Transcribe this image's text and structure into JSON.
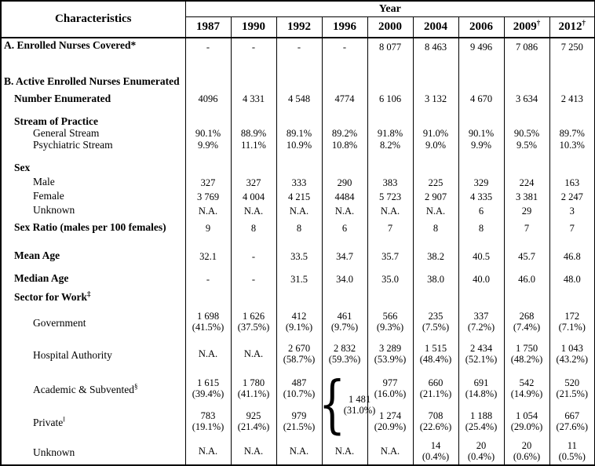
{
  "table": {
    "characteristics_header": "Characteristics",
    "year_header": "Year",
    "years": [
      {
        "label": "1987",
        "sup": ""
      },
      {
        "label": "1990",
        "sup": ""
      },
      {
        "label": "1992",
        "sup": ""
      },
      {
        "label": "1996",
        "sup": ""
      },
      {
        "label": "2000",
        "sup": ""
      },
      {
        "label": "2004",
        "sup": ""
      },
      {
        "label": "2006",
        "sup": ""
      },
      {
        "label": "2009",
        "sup": "†"
      },
      {
        "label": "2012",
        "sup": "†"
      }
    ],
    "merged_1996": {
      "brace": "{",
      "value": "1 481\n(31.0%)"
    },
    "rows": [
      {
        "name": "enrolled-covered",
        "label": "A. Enrolled Nurses Covered*",
        "sup": "",
        "values": [
          "-",
          "-",
          "-",
          "-",
          "8 077",
          "8 463",
          "9 496",
          "7 086",
          "7 250"
        ]
      },
      {
        "name": "active-enumerated-heading",
        "label": "B. Active Enrolled Nurses Enumerated",
        "sup": "",
        "values": null
      },
      {
        "name": "number-enumerated",
        "label": "Number Enumerated",
        "sup": "",
        "values": [
          "4096",
          "4 331",
          "4 548",
          "4774",
          "6 106",
          "3 132",
          "4 670",
          "3 634",
          "2 413"
        ]
      },
      {
        "name": "stream-heading",
        "label": "Stream of Practice",
        "sup": "",
        "values": null
      },
      {
        "name": "general-stream",
        "label": "General Stream",
        "sup": "",
        "values": [
          "90.1%",
          "88.9%",
          "89.1%",
          "89.2%",
          "91.8%",
          "91.0%",
          "90.1%",
          "90.5%",
          "89.7%"
        ]
      },
      {
        "name": "psychiatric-stream",
        "label": "Psychiatric Stream",
        "sup": "",
        "values": [
          "9.9%",
          "11.1%",
          "10.9%",
          "10.8%",
          "8.2%",
          "9.0%",
          "9.9%",
          "9.5%",
          "10.3%"
        ]
      },
      {
        "name": "sex-heading",
        "label": "Sex",
        "sup": "",
        "values": null
      },
      {
        "name": "sex-male",
        "label": "Male",
        "sup": "",
        "values": [
          "327",
          "327",
          "333",
          "290",
          "383",
          "225",
          "329",
          "224",
          "163"
        ]
      },
      {
        "name": "sex-female",
        "label": "Female",
        "sup": "",
        "values": [
          "3 769",
          "4 004",
          "4 215",
          "4484",
          "5 723",
          "2 907",
          "4 335",
          "3 381",
          "2 247"
        ]
      },
      {
        "name": "sex-unknown",
        "label": "Unknown",
        "sup": "",
        "values": [
          "N.A.",
          "N.A.",
          "N.A.",
          "N.A.",
          "N.A.",
          "N.A.",
          "6",
          "29",
          "3"
        ]
      },
      {
        "name": "sex-ratio",
        "label": "Sex Ratio (males per 100 females)",
        "sup": "",
        "values": [
          "9",
          "8",
          "8",
          "6",
          "7",
          "8",
          "8",
          "7",
          "7"
        ]
      },
      {
        "name": "mean-age",
        "label": "Mean Age",
        "sup": "",
        "values": [
          "32.1",
          "-",
          "33.5",
          "34.7",
          "35.7",
          "38.2",
          "40.5",
          "45.7",
          "46.8"
        ]
      },
      {
        "name": "median-age",
        "label": "Median Age",
        "sup": "",
        "values": [
          "-",
          "-",
          "31.5",
          "34.0",
          "35.0",
          "38.0",
          "40.0",
          "46.0",
          "48.0"
        ]
      },
      {
        "name": "sector-heading",
        "label": "Sector for Work",
        "sup": "‡",
        "values": null
      },
      {
        "name": "sector-government",
        "label": "Government",
        "sup": "",
        "values": [
          "1 698\n(41.5%)",
          "1 626\n(37.5%)",
          "412\n(9.1%)",
          "461\n(9.7%)",
          "566\n(9.3%)",
          "235\n(7.5%)",
          "337\n(7.2%)",
          "268\n(7.4%)",
          "172\n(7.1%)"
        ]
      },
      {
        "name": "sector-hospital-authority",
        "label": "Hospital Authority",
        "sup": "",
        "values": [
          "N.A.",
          "N.A.",
          "2 670\n(58.7%)",
          "2 832\n(59.3%)",
          "3 289\n(53.9%)",
          "1 515\n(48.4%)",
          "2 434\n(52.1%)",
          "1 750\n(48.2%)",
          "1 043\n(43.2%)"
        ]
      },
      {
        "name": "sector-academic-subvented",
        "label": "Academic & Subvented",
        "sup": "§",
        "values": [
          "1 615\n(39.4%)",
          "1 780\n(41.1%)",
          "487\n(10.7%)",
          null,
          "977\n(16.0%)",
          "660\n(21.1%)",
          "691\n(14.8%)",
          "542\n(14.9%)",
          "520\n(21.5%)"
        ]
      },
      {
        "name": "sector-private",
        "label": "Private",
        "sup": "‖",
        "values": [
          "783\n(19.1%)",
          "925\n(21.4%)",
          "979\n(21.5%)",
          null,
          "1 274\n(20.9%)",
          "708\n(22.6%)",
          "1 188\n(25.4%)",
          "1 054\n(29.0%)",
          "667\n(27.6%)"
        ]
      },
      {
        "name": "sector-unknown",
        "label": "Unknown",
        "sup": "",
        "values": [
          "N.A.",
          "N.A.",
          "N.A.",
          "N.A.",
          "N.A.",
          "14\n(0.4%)",
          "20\n(0.4%)",
          "20\n(0.6%)",
          "11\n(0.5%)"
        ]
      }
    ]
  }
}
